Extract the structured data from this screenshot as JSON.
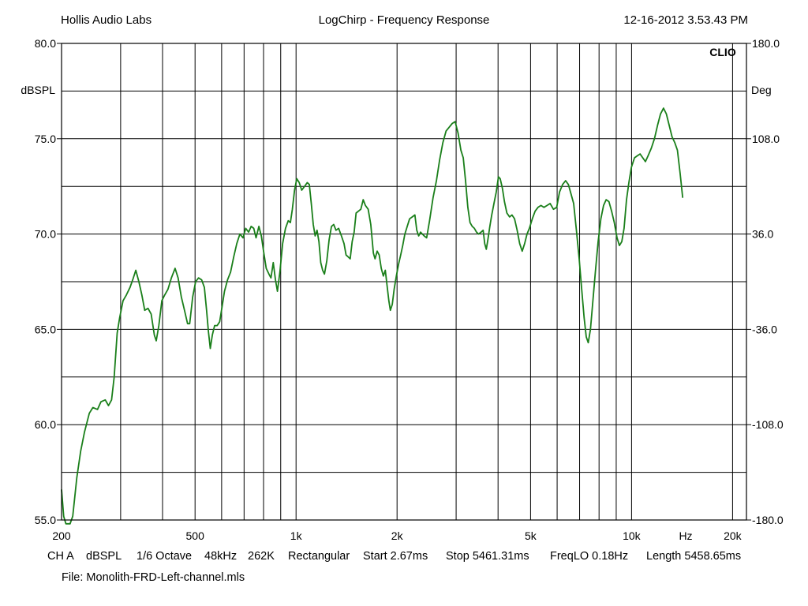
{
  "header": {
    "left": "Hollis Audio Labs",
    "center": "LogChirp - Frequency Response",
    "right": "12-16-2012 3.53.43 PM"
  },
  "brand": "CLIO",
  "colors": {
    "trace": "#1a7f1a",
    "grid": "#000000",
    "background": "#ffffff"
  },
  "info": {
    "channel": "CH A",
    "unit": "dBSPL",
    "smoothing": "1/6 Octave",
    "sample_rate": "48kHz",
    "size": "262K",
    "window": "Rectangular",
    "start": "Start 2.67ms",
    "stop": "Stop 5461.31ms",
    "freq_lo": "FreqLO 0.18Hz",
    "length": "Length 5458.65ms"
  },
  "file": "File: Monolith-FRD-Left-channel.mls",
  "chart_data": {
    "type": "line",
    "title": "LogChirp - Frequency Response",
    "xscale": "log",
    "xlim": [
      200,
      22000
    ],
    "ylim": [
      55,
      80
    ],
    "y2lim": [
      -180,
      180
    ],
    "ylabel": "dBSPL",
    "y2label": "Deg",
    "xunit": "Hz",
    "grid": true,
    "x_tick_labels": [
      {
        "value": 200,
        "label": "200"
      },
      {
        "value": 500,
        "label": "500"
      },
      {
        "value": 1000,
        "label": "1k"
      },
      {
        "value": 2000,
        "label": "2k"
      },
      {
        "value": 5000,
        "label": "5k"
      },
      {
        "value": 10000,
        "label": "10k"
      },
      {
        "value": 20000,
        "label": "20k"
      }
    ],
    "x_unit_tick": {
      "value": 14500,
      "label": "Hz"
    },
    "x_gridlines": [
      300,
      400,
      500,
      600,
      700,
      800,
      900,
      1000,
      2000,
      3000,
      4000,
      5000,
      6000,
      7000,
      8000,
      9000,
      10000,
      20000
    ],
    "y_ticks": [
      {
        "value": 80,
        "label": "80.0"
      },
      {
        "value": 75,
        "label": "75.0"
      },
      {
        "value": 70,
        "label": "70.0"
      },
      {
        "value": 65,
        "label": "65.0"
      },
      {
        "value": 60,
        "label": "60.0"
      },
      {
        "value": 55,
        "label": "55.0"
      }
    ],
    "y_minor_gridlines": [
      57.5,
      62.5,
      67.5,
      72.5,
      77.5
    ],
    "y2_ticks": [
      {
        "value": 180,
        "label": "180.0"
      },
      {
        "value": 108,
        "label": "108.0"
      },
      {
        "value": 36,
        "label": "36.0"
      },
      {
        "value": -36,
        "label": "-36.0"
      },
      {
        "value": -108,
        "label": "-108.0"
      },
      {
        "value": -180,
        "label": "-180.0"
      }
    ],
    "series": [
      {
        "points": [
          [
            200,
            56.6
          ],
          [
            203,
            55.2
          ],
          [
            206,
            54.8
          ],
          [
            212,
            54.8
          ],
          [
            216,
            55.2
          ],
          [
            222,
            57.2
          ],
          [
            228,
            58.6
          ],
          [
            234,
            59.6
          ],
          [
            242,
            60.6
          ],
          [
            248,
            60.9
          ],
          [
            256,
            60.8
          ],
          [
            262,
            61.2
          ],
          [
            270,
            61.3
          ],
          [
            276,
            61.0
          ],
          [
            282,
            61.3
          ],
          [
            287,
            62.5
          ],
          [
            293,
            64.8
          ],
          [
            298,
            65.6
          ],
          [
            305,
            66.5
          ],
          [
            312,
            66.8
          ],
          [
            320,
            67.2
          ],
          [
            326,
            67.6
          ],
          [
            333,
            68.1
          ],
          [
            340,
            67.5
          ],
          [
            347,
            66.8
          ],
          [
            354,
            66.0
          ],
          [
            362,
            66.1
          ],
          [
            370,
            65.8
          ],
          [
            378,
            64.7
          ],
          [
            383,
            64.4
          ],
          [
            390,
            65.2
          ],
          [
            398,
            66.5
          ],
          [
            406,
            66.8
          ],
          [
            415,
            67.1
          ],
          [
            425,
            67.7
          ],
          [
            436,
            68.2
          ],
          [
            445,
            67.7
          ],
          [
            455,
            66.7
          ],
          [
            465,
            66.0
          ],
          [
            475,
            65.3
          ],
          [
            482,
            65.3
          ],
          [
            492,
            66.7
          ],
          [
            502,
            67.5
          ],
          [
            512,
            67.7
          ],
          [
            523,
            67.6
          ],
          [
            533,
            67.2
          ],
          [
            541,
            66.0
          ],
          [
            548,
            64.9
          ],
          [
            555,
            64.0
          ],
          [
            563,
            64.7
          ],
          [
            572,
            65.2
          ],
          [
            582,
            65.2
          ],
          [
            592,
            65.4
          ],
          [
            602,
            66.2
          ],
          [
            612,
            67.0
          ],
          [
            625,
            67.6
          ],
          [
            638,
            68.0
          ],
          [
            652,
            68.8
          ],
          [
            666,
            69.5
          ],
          [
            680,
            70.0
          ],
          [
            695,
            69.8
          ],
          [
            708,
            70.3
          ],
          [
            722,
            70.1
          ],
          [
            735,
            70.4
          ],
          [
            748,
            70.3
          ],
          [
            760,
            69.8
          ],
          [
            775,
            70.4
          ],
          [
            788,
            69.9
          ],
          [
            800,
            69.1
          ],
          [
            815,
            68.2
          ],
          [
            830,
            67.9
          ],
          [
            842,
            67.7
          ],
          [
            855,
            68.5
          ],
          [
            868,
            67.6
          ],
          [
            880,
            67.0
          ],
          [
            895,
            68.0
          ],
          [
            912,
            69.5
          ],
          [
            930,
            70.3
          ],
          [
            948,
            70.7
          ],
          [
            962,
            70.6
          ],
          [
            975,
            71.3
          ],
          [
            990,
            72.3
          ],
          [
            1005,
            72.9
          ],
          [
            1022,
            72.7
          ],
          [
            1040,
            72.3
          ],
          [
            1060,
            72.5
          ],
          [
            1080,
            72.7
          ],
          [
            1095,
            72.6
          ],
          [
            1110,
            71.6
          ],
          [
            1125,
            70.5
          ],
          [
            1140,
            69.9
          ],
          [
            1155,
            70.2
          ],
          [
            1170,
            69.6
          ],
          [
            1185,
            68.5
          ],
          [
            1200,
            68.1
          ],
          [
            1215,
            67.9
          ],
          [
            1235,
            68.6
          ],
          [
            1255,
            69.7
          ],
          [
            1275,
            70.4
          ],
          [
            1295,
            70.5
          ],
          [
            1315,
            70.2
          ],
          [
            1340,
            70.3
          ],
          [
            1365,
            69.9
          ],
          [
            1390,
            69.5
          ],
          [
            1410,
            68.9
          ],
          [
            1430,
            68.8
          ],
          [
            1450,
            68.7
          ],
          [
            1470,
            69.6
          ],
          [
            1490,
            70.1
          ],
          [
            1510,
            71.1
          ],
          [
            1535,
            71.2
          ],
          [
            1560,
            71.3
          ],
          [
            1585,
            71.8
          ],
          [
            1610,
            71.5
          ],
          [
            1640,
            71.3
          ],
          [
            1670,
            70.5
          ],
          [
            1700,
            69.0
          ],
          [
            1720,
            68.7
          ],
          [
            1745,
            69.1
          ],
          [
            1770,
            68.9
          ],
          [
            1795,
            68.2
          ],
          [
            1820,
            67.8
          ],
          [
            1845,
            68.1
          ],
          [
            1870,
            67.2
          ],
          [
            1890,
            66.5
          ],
          [
            1910,
            66.0
          ],
          [
            1935,
            66.3
          ],
          [
            1960,
            67.1
          ],
          [
            1990,
            67.8
          ],
          [
            2020,
            68.4
          ],
          [
            2050,
            68.9
          ],
          [
            2080,
            69.4
          ],
          [
            2110,
            70.0
          ],
          [
            2145,
            70.4
          ],
          [
            2180,
            70.8
          ],
          [
            2220,
            70.9
          ],
          [
            2260,
            71.0
          ],
          [
            2290,
            70.2
          ],
          [
            2320,
            69.9
          ],
          [
            2350,
            70.1
          ],
          [
            2380,
            70.0
          ],
          [
            2410,
            69.9
          ],
          [
            2450,
            69.8
          ],
          [
            2500,
            70.7
          ],
          [
            2560,
            71.9
          ],
          [
            2620,
            72.8
          ],
          [
            2680,
            73.9
          ],
          [
            2740,
            74.8
          ],
          [
            2800,
            75.4
          ],
          [
            2860,
            75.6
          ],
          [
            2920,
            75.8
          ],
          [
            2980,
            75.9
          ],
          [
            3040,
            75.3
          ],
          [
            3100,
            74.4
          ],
          [
            3150,
            74.0
          ],
          [
            3200,
            72.8
          ],
          [
            3250,
            71.4
          ],
          [
            3300,
            70.6
          ],
          [
            3350,
            70.4
          ],
          [
            3400,
            70.3
          ],
          [
            3450,
            70.1
          ],
          [
            3500,
            70.0
          ],
          [
            3560,
            70.1
          ],
          [
            3610,
            70.2
          ],
          [
            3650,
            69.5
          ],
          [
            3690,
            69.2
          ],
          [
            3730,
            69.7
          ],
          [
            3780,
            70.4
          ],
          [
            3830,
            71.0
          ],
          [
            3890,
            71.6
          ],
          [
            3950,
            72.2
          ],
          [
            4010,
            73.0
          ],
          [
            4060,
            72.9
          ],
          [
            4120,
            72.4
          ],
          [
            4180,
            71.7
          ],
          [
            4250,
            71.1
          ],
          [
            4330,
            70.9
          ],
          [
            4400,
            71.0
          ],
          [
            4480,
            70.8
          ],
          [
            4560,
            70.2
          ],
          [
            4640,
            69.5
          ],
          [
            4720,
            69.1
          ],
          [
            4800,
            69.5
          ],
          [
            4880,
            70.0
          ],
          [
            4960,
            70.3
          ],
          [
            5060,
            70.8
          ],
          [
            5160,
            71.2
          ],
          [
            5260,
            71.4
          ],
          [
            5370,
            71.5
          ],
          [
            5480,
            71.4
          ],
          [
            5600,
            71.5
          ],
          [
            5720,
            71.6
          ],
          [
            5850,
            71.3
          ],
          [
            5980,
            71.4
          ],
          [
            6100,
            72.2
          ],
          [
            6230,
            72.6
          ],
          [
            6360,
            72.8
          ],
          [
            6480,
            72.6
          ],
          [
            6600,
            72.1
          ],
          [
            6720,
            71.6
          ],
          [
            6850,
            70.2
          ],
          [
            6980,
            68.7
          ],
          [
            7100,
            67.1
          ],
          [
            7220,
            65.6
          ],
          [
            7330,
            64.6
          ],
          [
            7430,
            64.3
          ],
          [
            7540,
            65.0
          ],
          [
            7660,
            66.4
          ],
          [
            7800,
            68.0
          ],
          [
            7950,
            69.6
          ],
          [
            8100,
            70.8
          ],
          [
            8250,
            71.5
          ],
          [
            8400,
            71.8
          ],
          [
            8560,
            71.7
          ],
          [
            8720,
            71.2
          ],
          [
            8880,
            70.6
          ],
          [
            9050,
            69.8
          ],
          [
            9200,
            69.4
          ],
          [
            9350,
            69.6
          ],
          [
            9500,
            70.3
          ],
          [
            9660,
            71.8
          ],
          [
            9820,
            72.7
          ],
          [
            9990,
            73.5
          ],
          [
            10200,
            74.0
          ],
          [
            10400,
            74.1
          ],
          [
            10600,
            74.2
          ],
          [
            10800,
            74.0
          ],
          [
            11000,
            73.8
          ],
          [
            11200,
            74.1
          ],
          [
            11450,
            74.5
          ],
          [
            11700,
            75.0
          ],
          [
            11950,
            75.7
          ],
          [
            12200,
            76.3
          ],
          [
            12450,
            76.6
          ],
          [
            12700,
            76.3
          ],
          [
            12950,
            75.7
          ],
          [
            13200,
            75.1
          ],
          [
            13450,
            74.8
          ],
          [
            13700,
            74.4
          ],
          [
            13950,
            73.2
          ],
          [
            14200,
            71.9
          ]
        ]
      }
    ]
  }
}
